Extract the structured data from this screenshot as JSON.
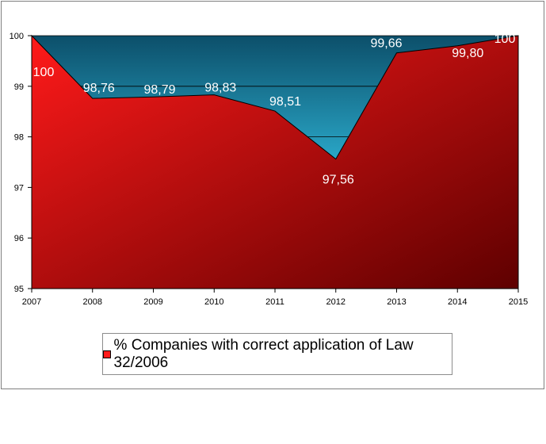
{
  "chart_data": {
    "type": "area",
    "x": [
      "2007",
      "2008",
      "2009",
      "2010",
      "2011",
      "2012",
      "2013",
      "2014",
      "2015"
    ],
    "series": [
      {
        "name": "% Companies with correct application of Law 32/2006",
        "values": [
          100,
          98.76,
          98.79,
          98.83,
          98.51,
          97.56,
          99.66,
          99.8,
          100
        ],
        "labels": [
          "100",
          "98,76",
          "98,79",
          "98,83",
          "98,51",
          "97,56",
          "99,66",
          "99,80",
          "100"
        ]
      }
    ],
    "ylim": [
      95,
      100
    ],
    "yticks": [
      "95",
      "96",
      "97",
      "98",
      "99",
      "100"
    ],
    "grid": true,
    "legend_position": "bottom",
    "colors": {
      "area_light": "#ff1a1a",
      "area_dark": "#5e0000",
      "background_light": "#2aa8c9",
      "background_dark": "#0c4f6a",
      "gridline": "#000000"
    }
  }
}
